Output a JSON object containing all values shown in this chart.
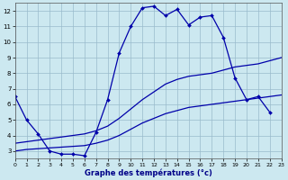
{
  "xlabel": "Graphe des températures (°c)",
  "background_color": "#cce8f0",
  "grid_color": "#99bbcc",
  "line_color": "#0000aa",
  "xlim": [
    0,
    23
  ],
  "ylim": [
    2.5,
    12.5
  ],
  "xticks": [
    0,
    1,
    2,
    3,
    4,
    5,
    6,
    7,
    8,
    9,
    10,
    11,
    12,
    13,
    14,
    15,
    16,
    17,
    18,
    19,
    20,
    21,
    22,
    23
  ],
  "yticks": [
    3,
    4,
    5,
    6,
    7,
    8,
    9,
    10,
    11,
    12
  ],
  "line1_x": [
    0,
    1,
    2,
    3,
    4,
    5,
    6,
    7,
    8,
    9,
    10,
    11,
    12,
    13,
    14,
    15,
    16,
    17,
    18,
    19,
    20,
    21,
    22
  ],
  "line1_y": [
    6.5,
    5.0,
    4.1,
    3.0,
    2.8,
    2.8,
    2.7,
    4.2,
    6.3,
    9.3,
    11.0,
    12.2,
    12.3,
    11.7,
    12.1,
    11.1,
    11.6,
    11.7,
    10.3,
    7.7,
    6.3,
    6.5,
    5.5
  ],
  "line2_x": [
    0,
    1,
    2,
    3,
    4,
    5,
    6,
    7,
    8,
    9,
    10,
    11,
    12,
    13,
    14,
    15,
    16,
    17,
    18,
    19,
    20,
    21,
    22,
    23
  ],
  "line2_y": [
    3.5,
    3.6,
    3.7,
    3.8,
    3.9,
    4.0,
    4.1,
    4.3,
    4.6,
    5.1,
    5.7,
    6.3,
    6.8,
    7.3,
    7.6,
    7.8,
    7.9,
    8.0,
    8.2,
    8.4,
    8.5,
    8.6,
    8.8,
    9.0
  ],
  "line3_x": [
    0,
    1,
    2,
    3,
    4,
    5,
    6,
    7,
    8,
    9,
    10,
    11,
    12,
    13,
    14,
    15,
    16,
    17,
    18,
    19,
    20,
    21,
    22,
    23
  ],
  "line3_y": [
    3.0,
    3.1,
    3.15,
    3.2,
    3.25,
    3.3,
    3.35,
    3.5,
    3.7,
    4.0,
    4.4,
    4.8,
    5.1,
    5.4,
    5.6,
    5.8,
    5.9,
    6.0,
    6.1,
    6.2,
    6.3,
    6.4,
    6.5,
    6.6
  ]
}
